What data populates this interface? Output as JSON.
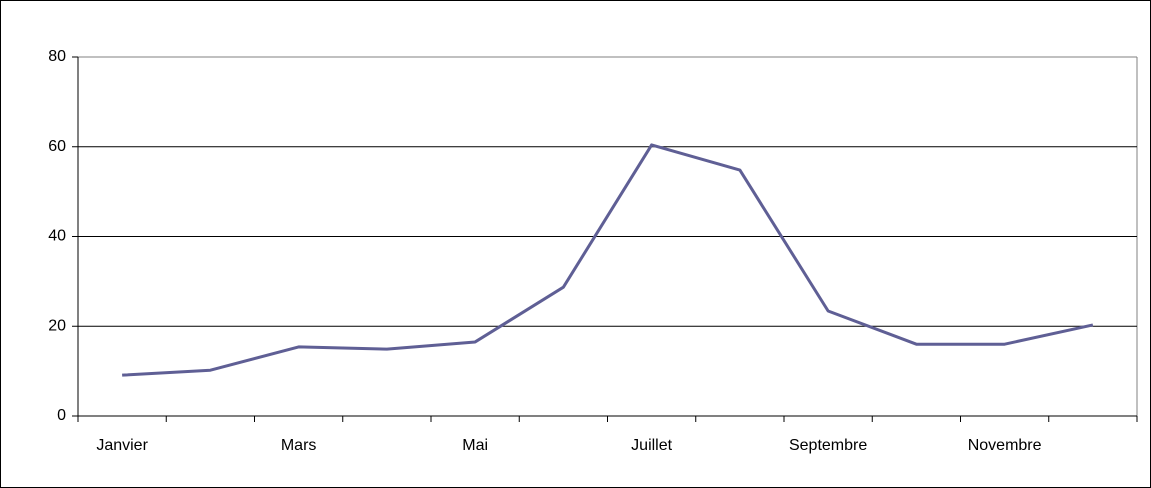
{
  "chart_data": {
    "type": "line",
    "categories": [
      "Janvier",
      null,
      "Mars",
      null,
      "Mai",
      null,
      "Juillet",
      null,
      "Septembre",
      null,
      "Novembre",
      null
    ],
    "series": [
      {
        "name": null,
        "color": "#5f5f95",
        "values": [
          9.1,
          10.2,
          15.4,
          14.9,
          16.5,
          28.7,
          60.4,
          54.8,
          23.4,
          16.0,
          16.0,
          20.3
        ]
      }
    ],
    "ylim": [
      0,
      80
    ],
    "yticks": [
      0,
      20,
      40,
      60,
      80
    ],
    "grid": true
  }
}
